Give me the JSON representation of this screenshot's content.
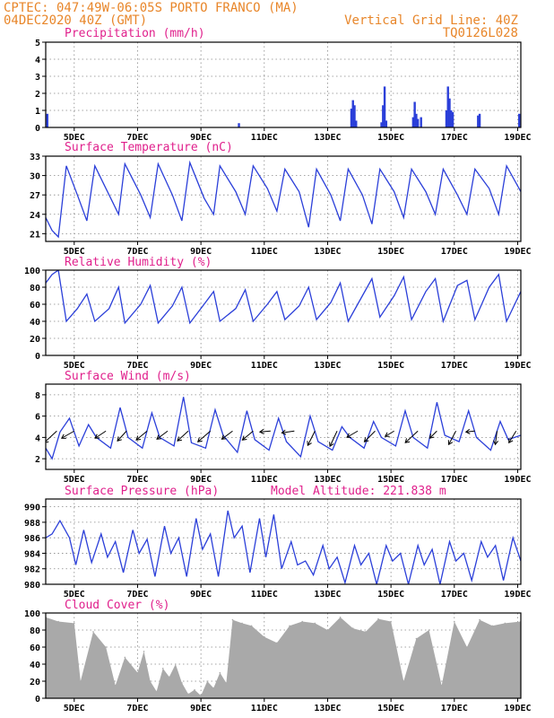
{
  "header": {
    "left_line1": "CPTEC:   047:49W-06:05S  PORTO FRANCO (MA)",
    "left_line2": "04DEC2020 40Z (GMT)",
    "right_line1": "Vertical Grid Line: 40Z",
    "right_line2": "TQ0126L028"
  },
  "x_tick_labels": [
    "5DEC",
    "7DEC",
    "9DEC",
    "11DEC",
    "13DEC",
    "15DEC",
    "17DEC",
    "19DEC"
  ],
  "colors": {
    "header": "#e8862a",
    "title": "#e0208c",
    "series": "#2b3fd9",
    "cloud": "#a9a9a9"
  },
  "chart_data": [
    {
      "type": "bar",
      "title": "Precipitation (mm/h)",
      "ylim": [
        0,
        5
      ],
      "yticks": [
        0,
        1,
        2,
        3,
        4,
        5
      ],
      "xlim": [
        4.1,
        19.1
      ],
      "bars": [
        {
          "x": 4.15,
          "y": 0.8
        },
        {
          "x": 10.2,
          "y": 0.25
        },
        {
          "x": 13.75,
          "y": 1.1
        },
        {
          "x": 13.8,
          "y": 1.6
        },
        {
          "x": 13.85,
          "y": 1.3
        },
        {
          "x": 13.9,
          "y": 0.4
        },
        {
          "x": 14.7,
          "y": 0.3
        },
        {
          "x": 14.75,
          "y": 1.3
        },
        {
          "x": 14.8,
          "y": 2.4
        },
        {
          "x": 14.85,
          "y": 0.4
        },
        {
          "x": 15.7,
          "y": 0.6
        },
        {
          "x": 15.75,
          "y": 1.5
        },
        {
          "x": 15.8,
          "y": 0.8
        },
        {
          "x": 15.85,
          "y": 0.5
        },
        {
          "x": 15.95,
          "y": 0.6
        },
        {
          "x": 16.75,
          "y": 1.0
        },
        {
          "x": 16.8,
          "y": 2.4
        },
        {
          "x": 16.85,
          "y": 1.7
        },
        {
          "x": 16.9,
          "y": 1.0
        },
        {
          "x": 16.95,
          "y": 0.9
        },
        {
          "x": 17.75,
          "y": 0.7
        },
        {
          "x": 17.8,
          "y": 0.8
        },
        {
          "x": 19.05,
          "y": 0.8
        }
      ]
    },
    {
      "type": "line",
      "title": "Surface Temperature (nC)",
      "ylim": [
        19.8,
        33
      ],
      "yticks": [
        21,
        24,
        27,
        30,
        33
      ],
      "xlim": [
        4.1,
        19.1
      ],
      "x": [
        4.1,
        4.3,
        4.5,
        4.75,
        5.1,
        5.4,
        5.65,
        6.1,
        6.4,
        6.6,
        7.1,
        7.4,
        7.65,
        8.1,
        8.4,
        8.65,
        9.1,
        9.4,
        9.6,
        10.1,
        10.4,
        10.65,
        11.1,
        11.4,
        11.65,
        12.1,
        12.4,
        12.65,
        13.1,
        13.4,
        13.65,
        14.1,
        14.4,
        14.65,
        15.1,
        15.4,
        15.65,
        16.1,
        16.4,
        16.65,
        17.1,
        17.4,
        17.65,
        18.1,
        18.4,
        18.65,
        19.1
      ],
      "values": [
        23.5,
        21.5,
        20.5,
        31.5,
        27,
        23,
        31.5,
        27,
        24,
        31.8,
        27,
        23.5,
        31.8,
        27,
        23,
        32,
        26.5,
        24,
        31.5,
        27.5,
        24,
        31.5,
        28,
        24.5,
        31,
        27.5,
        22,
        31,
        27,
        23,
        31,
        27,
        22.5,
        31,
        27.5,
        23.5,
        31,
        27.5,
        24,
        31,
        27,
        24,
        31,
        28,
        24,
        31.5,
        27.5
      ]
    },
    {
      "type": "line",
      "title": "Relative Humidity (%)",
      "ylim": [
        0,
        100
      ],
      "yticks": [
        0,
        20,
        40,
        60,
        80,
        100
      ],
      "xlim": [
        4.1,
        19.1
      ],
      "x": [
        4.1,
        4.3,
        4.5,
        4.75,
        5.1,
        5.4,
        5.65,
        6.1,
        6.4,
        6.6,
        7.1,
        7.4,
        7.65,
        8.1,
        8.4,
        8.65,
        9.1,
        9.4,
        9.6,
        10.1,
        10.4,
        10.65,
        11.1,
        11.4,
        11.65,
        12.1,
        12.4,
        12.65,
        13.1,
        13.4,
        13.65,
        14.1,
        14.4,
        14.65,
        15.1,
        15.4,
        15.65,
        16.1,
        16.4,
        16.65,
        17.1,
        17.4,
        17.65,
        18.1,
        18.4,
        18.65,
        19.1
      ],
      "values": [
        85,
        95,
        100,
        40,
        55,
        72,
        40,
        55,
        80,
        38,
        60,
        82,
        38,
        58,
        80,
        38,
        60,
        75,
        40,
        55,
        77,
        40,
        60,
        75,
        42,
        58,
        80,
        42,
        62,
        85,
        40,
        70,
        90,
        45,
        70,
        92,
        42,
        75,
        90,
        40,
        82,
        88,
        42,
        80,
        95,
        40,
        75
      ]
    },
    {
      "type": "line",
      "title": "Surface Wind (m/s)",
      "ylim": [
        1,
        9
      ],
      "yticks": [
        2,
        4,
        6,
        8
      ],
      "xlim": [
        4.1,
        19.1
      ],
      "x": [
        4.1,
        4.3,
        4.55,
        4.85,
        5.15,
        5.45,
        5.7,
        6.15,
        6.45,
        6.7,
        7.15,
        7.45,
        7.7,
        8.15,
        8.45,
        8.7,
        9.15,
        9.45,
        9.7,
        10.15,
        10.45,
        10.7,
        11.15,
        11.45,
        11.7,
        12.15,
        12.45,
        12.7,
        13.15,
        13.45,
        13.7,
        14.15,
        14.45,
        14.7,
        15.15,
        15.45,
        15.7,
        16.15,
        16.45,
        16.7,
        17.15,
        17.45,
        17.7,
        18.15,
        18.45,
        18.7,
        19.1
      ],
      "values": [
        3,
        2,
        4.5,
        5.8,
        3.2,
        5.2,
        4,
        3,
        6.8,
        4,
        3,
        6.3,
        4,
        3.2,
        7.8,
        3.5,
        3,
        6.6,
        4.2,
        2.6,
        6.5,
        3.8,
        2.8,
        5.8,
        3.6,
        2.2,
        6,
        3.6,
        2.8,
        5,
        4,
        3,
        5.5,
        4,
        3.2,
        6.5,
        4,
        3,
        7.3,
        4.2,
        3.6,
        6.5,
        4,
        2.8,
        5.5,
        3.8,
        4.2
      ],
      "barbs": [
        {
          "x": 4.45,
          "dx": -0.7,
          "dy": -1.3
        },
        {
          "x": 5.0,
          "dx": -0.7,
          "dy": -0.8
        },
        {
          "x": 6.0,
          "dx": -0.6,
          "dy": -0.8
        },
        {
          "x": 6.65,
          "dx": -0.5,
          "dy": -1.1
        },
        {
          "x": 7.3,
          "dx": -0.6,
          "dy": -1.0
        },
        {
          "x": 7.95,
          "dx": -0.6,
          "dy": -0.9
        },
        {
          "x": 8.6,
          "dx": -0.6,
          "dy": -1.1
        },
        {
          "x": 9.3,
          "dx": -0.7,
          "dy": -1.2
        },
        {
          "x": 10.0,
          "dx": -0.6,
          "dy": -0.9
        },
        {
          "x": 10.65,
          "dx": -0.6,
          "dy": -1.0
        },
        {
          "x": 11.2,
          "dx": -0.6,
          "dy": -0.1
        },
        {
          "x": 11.95,
          "dx": -0.7,
          "dy": -0.2
        },
        {
          "x": 12.6,
          "dx": -0.4,
          "dy": -1.6
        },
        {
          "x": 13.3,
          "dx": -0.4,
          "dy": -1.7
        },
        {
          "x": 13.95,
          "dx": -0.6,
          "dy": -0.7
        },
        {
          "x": 14.5,
          "dx": -0.6,
          "dy": -1.2
        },
        {
          "x": 15.1,
          "dx": -0.5,
          "dy": -0.6
        },
        {
          "x": 15.85,
          "dx": -0.7,
          "dy": -1.3
        },
        {
          "x": 16.45,
          "dx": -0.4,
          "dy": -0.8
        },
        {
          "x": 17.05,
          "dx": -0.4,
          "dy": -1.5
        },
        {
          "x": 17.65,
          "dx": -0.5,
          "dy": -0.1
        },
        {
          "x": 18.35,
          "dx": -0.1,
          "dy": -1.5
        },
        {
          "x": 18.95,
          "dx": -0.4,
          "dy": -1.3
        }
      ]
    },
    {
      "type": "line",
      "title": "Surface Pressure (hPa)",
      "annotation": "Model Altitude: 221.838 m",
      "ylim": [
        980,
        991
      ],
      "yticks": [
        980,
        982,
        984,
        986,
        988,
        990
      ],
      "xlim": [
        4.1,
        19.1
      ],
      "x": [
        4.1,
        4.3,
        4.55,
        4.85,
        5.05,
        5.3,
        5.55,
        5.85,
        6.05,
        6.3,
        6.55,
        6.85,
        7.05,
        7.3,
        7.55,
        7.85,
        8.05,
        8.3,
        8.55,
        8.85,
        9.05,
        9.3,
        9.55,
        9.85,
        10.05,
        10.3,
        10.55,
        10.85,
        11.05,
        11.3,
        11.55,
        11.85,
        12.05,
        12.3,
        12.55,
        12.85,
        13.05,
        13.3,
        13.55,
        13.85,
        14.05,
        14.3,
        14.55,
        14.85,
        15.05,
        15.3,
        15.55,
        15.85,
        16.05,
        16.3,
        16.55,
        16.85,
        17.05,
        17.3,
        17.55,
        17.85,
        18.05,
        18.3,
        18.55,
        18.85,
        19.1
      ],
      "values": [
        986,
        986.5,
        988.2,
        986,
        982.5,
        987,
        982.8,
        986.5,
        983.5,
        985.5,
        981.5,
        987,
        984,
        985.8,
        981,
        987.5,
        984,
        986,
        981,
        988.5,
        984.5,
        986.5,
        981,
        989.5,
        986,
        987.5,
        981.5,
        988.5,
        983.5,
        989,
        982,
        985.5,
        982.5,
        983,
        981.2,
        985,
        982,
        983.5,
        980.2,
        985,
        982.5,
        984,
        980,
        985,
        983,
        984,
        980,
        985,
        982.5,
        984.5,
        980,
        985.5,
        983,
        984,
        980.5,
        985.5,
        983.5,
        985,
        980.5,
        986,
        983
      ]
    },
    {
      "type": "bar",
      "title": "Cloud Cover (%)",
      "ylim": [
        0,
        100
      ],
      "yticks": [
        0,
        20,
        40,
        60,
        80,
        100
      ],
      "xlim": [
        4.1,
        19.1
      ],
      "x": [
        4.1,
        4.5,
        5.0,
        5.2,
        5.6,
        6.0,
        6.3,
        6.6,
        7.0,
        7.2,
        7.4,
        7.6,
        7.8,
        8.0,
        8.2,
        8.4,
        8.6,
        8.8,
        9.0,
        9.2,
        9.4,
        9.6,
        9.8,
        10.0,
        10.3,
        10.6,
        11.0,
        11.4,
        11.8,
        12.2,
        12.6,
        13.0,
        13.4,
        13.8,
        14.2,
        14.6,
        15.0,
        15.4,
        15.8,
        16.2,
        16.6,
        17.0,
        17.4,
        17.8,
        18.2,
        18.6,
        19.1
      ],
      "values": [
        95,
        90,
        88,
        20,
        78,
        60,
        15,
        48,
        30,
        55,
        20,
        8,
        35,
        25,
        40,
        18,
        5,
        10,
        3,
        20,
        12,
        30,
        18,
        92,
        88,
        85,
        72,
        65,
        85,
        90,
        88,
        80,
        95,
        82,
        78,
        93,
        90,
        20,
        70,
        80,
        15,
        90,
        60,
        92,
        85,
        88,
        90
      ]
    }
  ]
}
